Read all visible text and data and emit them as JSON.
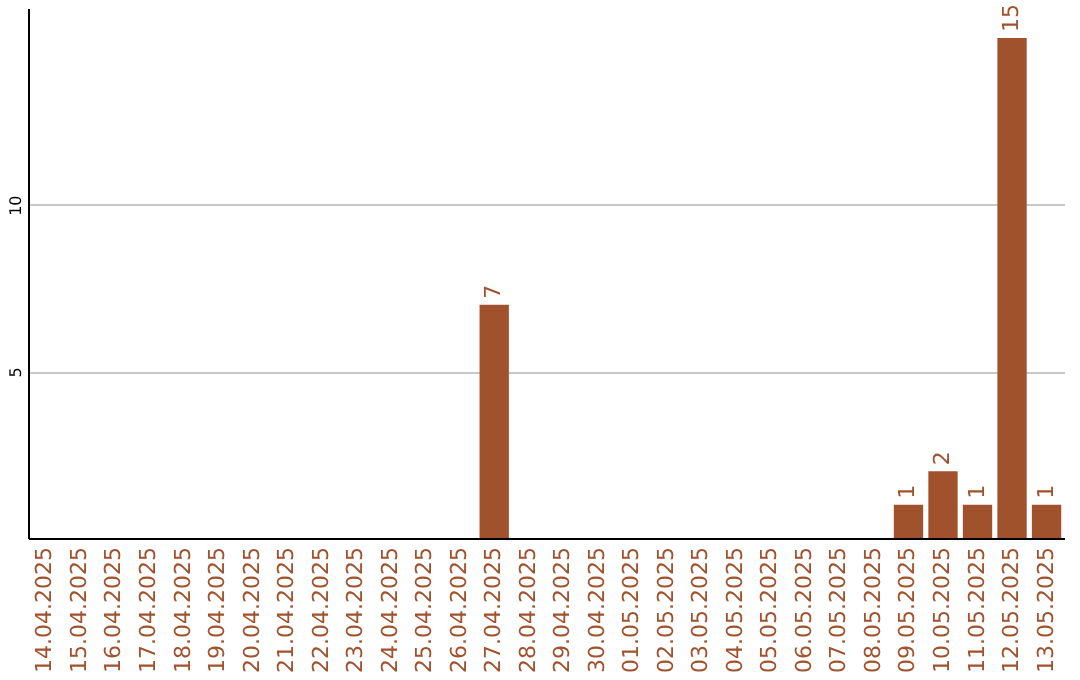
{
  "chart_data": {
    "type": "bar",
    "categories": [
      "14.04.2025",
      "15.04.2025",
      "16.04.2025",
      "17.04.2025",
      "18.04.2025",
      "19.04.2025",
      "20.04.2025",
      "21.04.2025",
      "22.04.2025",
      "23.04.2025",
      "24.04.2025",
      "25.04.2025",
      "26.04.2025",
      "27.04.2025",
      "28.04.2025",
      "29.04.2025",
      "30.04.2025",
      "01.05.2025",
      "02.05.2025",
      "03.05.2025",
      "04.05.2025",
      "05.05.2025",
      "06.05.2025",
      "07.05.2025",
      "08.05.2025",
      "09.05.2025",
      "10.05.2025",
      "11.05.2025",
      "12.05.2025",
      "13.05.2025"
    ],
    "values": [
      0,
      0,
      0,
      0,
      0,
      0,
      0,
      0,
      0,
      0,
      0,
      0,
      0,
      7,
      0,
      0,
      0,
      0,
      0,
      0,
      0,
      0,
      0,
      0,
      0,
      1,
      2,
      1,
      15,
      1
    ],
    "value_labels": [
      null,
      null,
      null,
      null,
      null,
      null,
      null,
      null,
      null,
      null,
      null,
      null,
      null,
      "7",
      null,
      null,
      null,
      null,
      null,
      null,
      null,
      null,
      null,
      null,
      null,
      "1",
      "2",
      "1",
      "15",
      "1"
    ],
    "color": "#a0522d",
    "ylim": [
      0,
      15.9
    ],
    "yticks": [
      5,
      10
    ],
    "grid": "y"
  }
}
